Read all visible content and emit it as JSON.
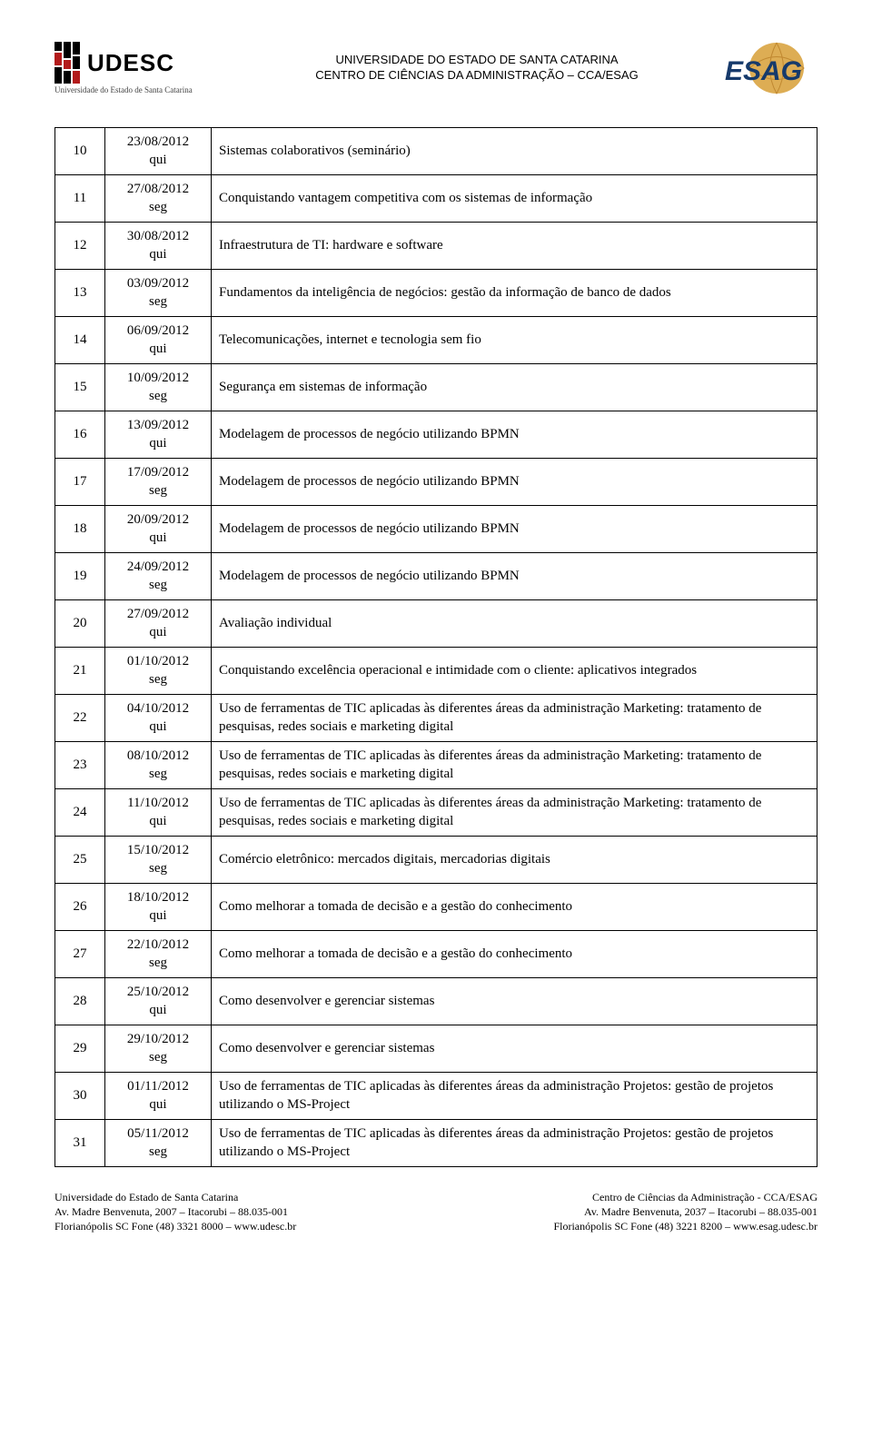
{
  "header": {
    "line1": "UNIVERSIDADE DO ESTADO DE SANTA CATARINA",
    "line2": "CENTRO DE CIÊNCIAS DA ADMINISTRAÇÃO – CCA/ESAG",
    "udesc_label": "UDESC",
    "udesc_sub": "Universidade do Estado de Santa Catarina"
  },
  "table": {
    "rows": [
      {
        "n": "10",
        "date": "23/08/2012",
        "day": "qui",
        "content": "Sistemas colaborativos (seminário)"
      },
      {
        "n": "11",
        "date": "27/08/2012",
        "day": "seg",
        "content": "Conquistando vantagem competitiva com os sistemas de informação"
      },
      {
        "n": "12",
        "date": "30/08/2012",
        "day": "qui",
        "content": "Infraestrutura de TI: hardware e software"
      },
      {
        "n": "13",
        "date": "03/09/2012",
        "day": "seg",
        "content": "Fundamentos da inteligência de negócios: gestão da informação de banco de dados"
      },
      {
        "n": "14",
        "date": "06/09/2012",
        "day": "qui",
        "content": "Telecomunicações, internet e tecnologia sem fio"
      },
      {
        "n": "15",
        "date": "10/09/2012",
        "day": "seg",
        "content": "Segurança em sistemas de informação"
      },
      {
        "n": "16",
        "date": "13/09/2012",
        "day": "qui",
        "content": "Modelagem de processos de negócio utilizando BPMN"
      },
      {
        "n": "17",
        "date": "17/09/2012",
        "day": "seg",
        "content": "Modelagem de processos de negócio utilizando BPMN"
      },
      {
        "n": "18",
        "date": "20/09/2012",
        "day": "qui",
        "content": "Modelagem de processos de negócio utilizando BPMN"
      },
      {
        "n": "19",
        "date": "24/09/2012",
        "day": "seg",
        "content": "Modelagem de processos de negócio utilizando BPMN"
      },
      {
        "n": "20",
        "date": "27/09/2012",
        "day": "qui",
        "content": "Avaliação individual"
      },
      {
        "n": "21",
        "date": "01/10/2012",
        "day": "seg",
        "content": "Conquistando excelência operacional e intimidade com o cliente: aplicativos integrados"
      },
      {
        "n": "22",
        "date": "04/10/2012",
        "day": "qui",
        "content": "Uso de ferramentas de TIC aplicadas às diferentes áreas da administração Marketing: tratamento de pesquisas, redes sociais e marketing digital"
      },
      {
        "n": "23",
        "date": "08/10/2012",
        "day": "seg",
        "content": "Uso de ferramentas de TIC aplicadas às diferentes áreas da administração Marketing: tratamento de pesquisas, redes sociais e marketing digital"
      },
      {
        "n": "24",
        "date": "11/10/2012",
        "day": "qui",
        "content": "Uso de ferramentas de TIC aplicadas às diferentes áreas da administração Marketing: tratamento de pesquisas, redes sociais e marketing digital"
      },
      {
        "n": "25",
        "date": "15/10/2012",
        "day": "seg",
        "content": "Comércio eletrônico: mercados digitais, mercadorias digitais"
      },
      {
        "n": "26",
        "date": "18/10/2012",
        "day": "qui",
        "content": "Como melhorar a tomada de decisão e a gestão do conhecimento"
      },
      {
        "n": "27",
        "date": "22/10/2012",
        "day": "seg",
        "content": "Como melhorar a tomada de decisão e a gestão do conhecimento"
      },
      {
        "n": "28",
        "date": "25/10/2012",
        "day": "qui",
        "content": "Como desenvolver e gerenciar sistemas"
      },
      {
        "n": "29",
        "date": "29/10/2012",
        "day": "seg",
        "content": "Como desenvolver e gerenciar sistemas"
      },
      {
        "n": "30",
        "date": "01/11/2012",
        "day": "qui",
        "content": "Uso de ferramentas de TIC aplicadas às diferentes áreas da administração Projetos: gestão de projetos utilizando o MS-Project"
      },
      {
        "n": "31",
        "date": "05/11/2012",
        "day": "seg",
        "content": "Uso de ferramentas de TIC aplicadas às diferentes áreas da administração Projetos: gestão de projetos utilizando o MS-Project"
      }
    ]
  },
  "footer": {
    "left_line1": "Universidade do Estado de Santa Catarina",
    "left_line2": "Av. Madre Benvenuta, 2007 – Itacorubi – 88.035-001",
    "left_line3": "Florianópolis SC  Fone (48) 3321 8000 – www.udesc.br",
    "right_line1": "Centro de Ciências da Administração - CCA/ESAG",
    "right_line2": "Av. Madre Benvenuta, 2037 – Itacorubi – 88.035-001",
    "right_line3": "Florianópolis SC  Fone (48) 3221 8200 – www.esag.udesc.br"
  },
  "style": {
    "font_family": "Times New Roman",
    "font_size_body": 15,
    "font_size_header": 13,
    "font_size_footer": 12,
    "border_color": "#000000",
    "text_color": "#000000",
    "background_color": "#ffffff",
    "udesc_icon_red": "#b31b1b",
    "udesc_icon_black": "#000000",
    "esag_globe_fill": "#d9a441",
    "esag_text_fill": "#163a6b"
  }
}
